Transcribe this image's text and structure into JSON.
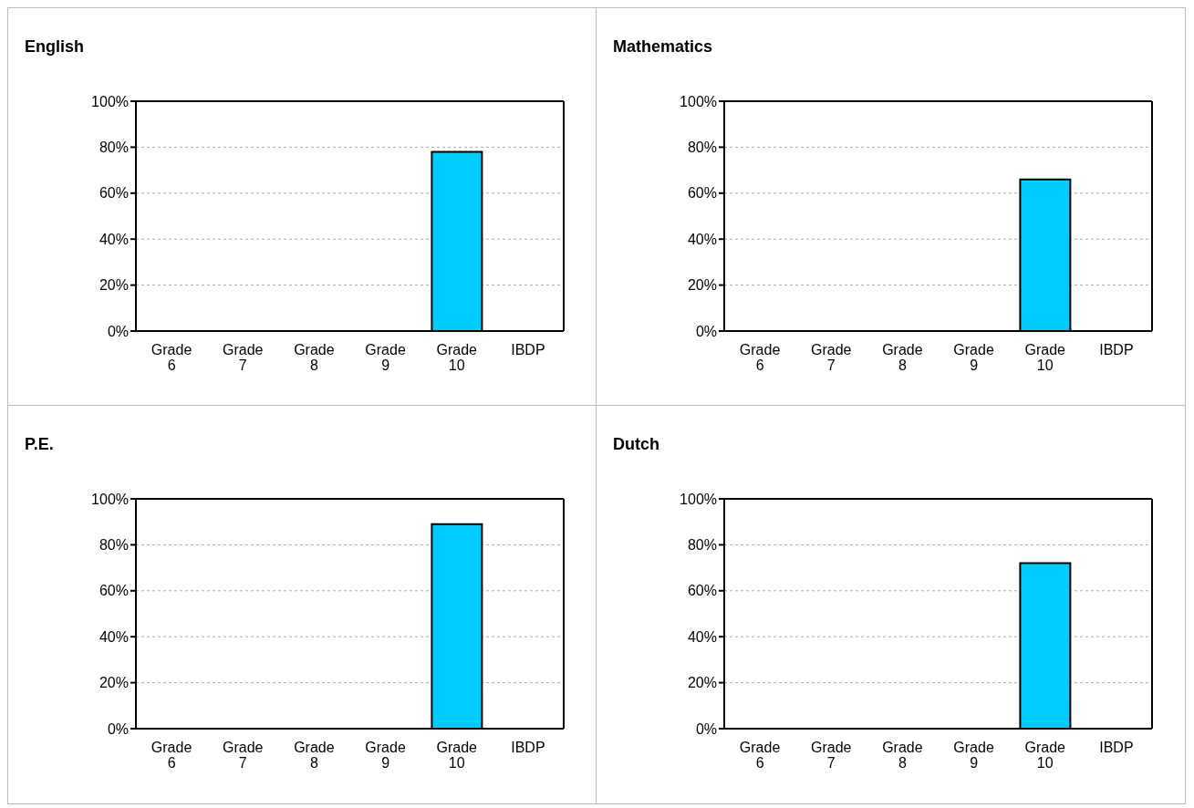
{
  "chart_data": [
    {
      "type": "bar",
      "title": "English",
      "categories": [
        "Grade 6",
        "Grade 7",
        "Grade 8",
        "Grade 9",
        "Grade 10",
        "IBDP"
      ],
      "values": [
        null,
        null,
        null,
        null,
        78,
        null
      ],
      "color": "#00ccff",
      "ylim": [
        0,
        100
      ],
      "yticks": [
        {
          "value": 0,
          "label": "0%"
        },
        {
          "value": 20,
          "label": "20%"
        },
        {
          "value": 40,
          "label": "40%"
        },
        {
          "value": 60,
          "label": "60%"
        },
        {
          "value": 80,
          "label": "80%"
        },
        {
          "value": 100,
          "label": "100%"
        }
      ],
      "grid": "y"
    },
    {
      "type": "bar",
      "title": "Mathematics",
      "categories": [
        "Grade 6",
        "Grade 7",
        "Grade 8",
        "Grade 9",
        "Grade 10",
        "IBDP"
      ],
      "values": [
        null,
        null,
        null,
        null,
        66,
        null
      ],
      "color": "#00ccff",
      "ylim": [
        0,
        100
      ],
      "yticks": [
        {
          "value": 0,
          "label": "0%"
        },
        {
          "value": 20,
          "label": "20%"
        },
        {
          "value": 40,
          "label": "40%"
        },
        {
          "value": 60,
          "label": "60%"
        },
        {
          "value": 80,
          "label": "80%"
        },
        {
          "value": 100,
          "label": "100%"
        }
      ],
      "grid": "y"
    },
    {
      "type": "bar",
      "title": "P.E.",
      "categories": [
        "Grade 6",
        "Grade 7",
        "Grade 8",
        "Grade 9",
        "Grade 10",
        "IBDP"
      ],
      "values": [
        null,
        null,
        null,
        null,
        89,
        null
      ],
      "color": "#00ccff",
      "ylim": [
        0,
        100
      ],
      "yticks": [
        {
          "value": 0,
          "label": "0%"
        },
        {
          "value": 20,
          "label": "20%"
        },
        {
          "value": 40,
          "label": "40%"
        },
        {
          "value": 60,
          "label": "60%"
        },
        {
          "value": 80,
          "label": "80%"
        },
        {
          "value": 100,
          "label": "100%"
        }
      ],
      "grid": "y"
    },
    {
      "type": "bar",
      "title": "Dutch",
      "categories": [
        "Grade 6",
        "Grade 7",
        "Grade 8",
        "Grade 9",
        "Grade 10",
        "IBDP"
      ],
      "values": [
        null,
        null,
        null,
        null,
        72,
        null
      ],
      "color": "#00ccff",
      "ylim": [
        0,
        100
      ],
      "yticks": [
        {
          "value": 0,
          "label": "0%"
        },
        {
          "value": 20,
          "label": "20%"
        },
        {
          "value": 40,
          "label": "40%"
        },
        {
          "value": 60,
          "label": "60%"
        },
        {
          "value": 80,
          "label": "80%"
        },
        {
          "value": 100,
          "label": "100%"
        }
      ],
      "grid": "y"
    }
  ]
}
